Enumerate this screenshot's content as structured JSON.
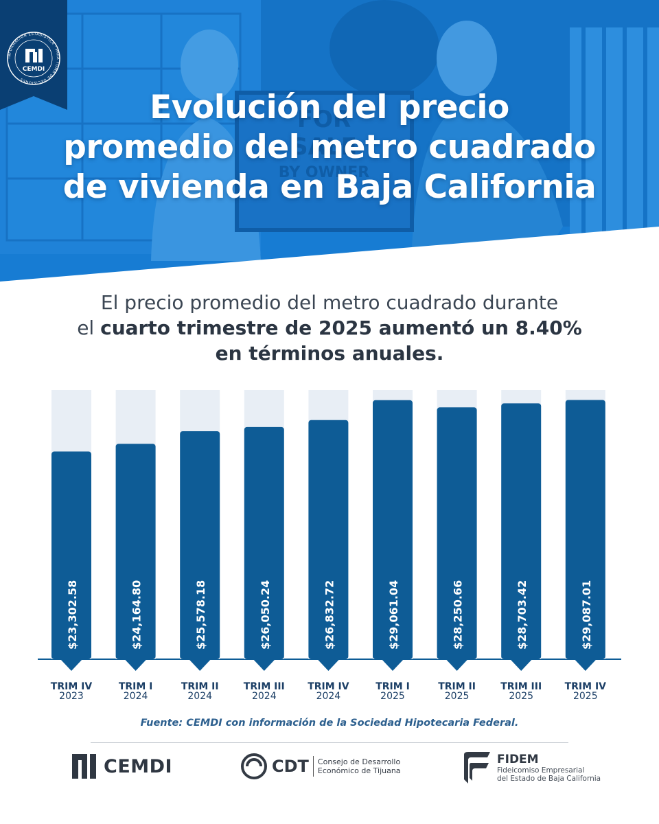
{
  "hero": {
    "title_lines": [
      "Evolución del precio",
      "promedio del metro cuadrado",
      "de vivienda en Baja California"
    ],
    "sign_text": [
      "FOR",
      "SALE",
      "BY OWNER"
    ]
  },
  "badge": {
    "brand": "CEMDI",
    "ring_text": "INFORMACIÓN ESTADÍSTICA · PARA TOMA DE DECISIONES"
  },
  "headline": {
    "part1": "El precio promedio del metro cuadrado durante",
    "part2": "el ",
    "part3": "cuarto trimestre de 2025 aumentó un 8.40%",
    "part4": "en términos anuales."
  },
  "chart_data": {
    "type": "bar",
    "categories": [
      {
        "period": "TRIM IV",
        "year": "2023"
      },
      {
        "period": "TRIM I",
        "year": "2024"
      },
      {
        "period": "TRIM II",
        "year": "2024"
      },
      {
        "period": "TRIM III",
        "year": "2024"
      },
      {
        "period": "TRIM IV",
        "year": "2024"
      },
      {
        "period": "TRIM I",
        "year": "2025"
      },
      {
        "period": "TRIM II",
        "year": "2025"
      },
      {
        "period": "TRIM III",
        "year": "2025"
      },
      {
        "period": "TRIM IV",
        "year": "2025"
      }
    ],
    "values": [
      23302.58,
      24164.8,
      25578.18,
      26050.24,
      26832.72,
      29061.04,
      28250.66,
      28703.42,
      29087.01
    ],
    "value_labels": [
      "$23,302.58",
      "$24,164.80",
      "$25,578.18",
      "$26,050.24",
      "$26,832.72",
      "$29,061.04",
      "$28,250.66",
      "$28,703.42",
      "$29,087.01"
    ],
    "ylim": [
      0,
      30200
    ],
    "colors": {
      "bar": "#0e5c96",
      "track": "#e8eef5",
      "axis": "#0e5c96",
      "label": "#ffffff",
      "tick": "#1c3f66"
    }
  },
  "source": "Fuente: CEMDI con información de la Sociedad Hipotecaria Federal.",
  "footer": {
    "cemdi": "CEMDI",
    "cdt": "CDT",
    "cdt_desc": [
      "Consejo de Desarrollo",
      "Económico de Tijuana"
    ],
    "fidem": "FIDEM",
    "fidem_desc": [
      "Fideicomiso Empresarial",
      "del Estado de Baja California"
    ]
  },
  "colors": {
    "primary": "#1378cf",
    "dark": "#0e5c96",
    "text": "#3b4653"
  }
}
